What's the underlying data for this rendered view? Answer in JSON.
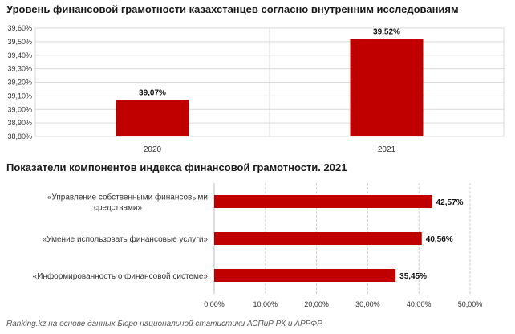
{
  "chart_data": [
    {
      "type": "bar",
      "title": "Уровень финансовой грамотности казахстанцев согласно внутренним исследованиям",
      "categories": [
        "2020",
        "2021"
      ],
      "values": [
        39.07,
        39.52
      ],
      "value_labels": [
        "39,07%",
        "39,52%"
      ],
      "ylim": [
        38.8,
        39.6
      ],
      "yticks": [
        "38,80%",
        "38,90%",
        "39,00%",
        "39,10%",
        "39,20%",
        "39,30%",
        "39,40%",
        "39,50%",
        "39,60%"
      ],
      "grid": true,
      "bar_color": "#c00000"
    },
    {
      "type": "bar",
      "orientation": "horizontal",
      "title": "Показатели компонентов индекса финансовой грамотности. 2021",
      "categories": [
        [
          "«Управление собственными финансовыми",
          "средствами»"
        ],
        [
          "«Умение использовать финансовые услуги»"
        ],
        [
          "«Информированность о финансовой системе»"
        ]
      ],
      "values": [
        42.57,
        40.56,
        35.45
      ],
      "value_labels": [
        "42,57%",
        "40,56%",
        "35,45%"
      ],
      "xlim": [
        0,
        50
      ],
      "xticks": [
        "0,00%",
        "10,00%",
        "20,00%",
        "30,00%",
        "40,00%",
        "50,00%"
      ],
      "grid": true,
      "bar_color": "#c00000"
    }
  ],
  "source": "Ranking.kz на основе данных Бюро национальной статистики АСПиР РК и АРРФР"
}
